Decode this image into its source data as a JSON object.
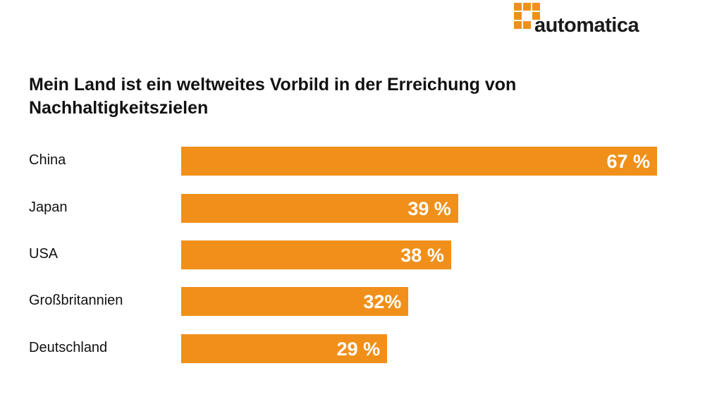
{
  "logo": {
    "text": "automatica",
    "color": "#f0901a"
  },
  "chart_data": {
    "type": "bar",
    "orientation": "horizontal",
    "title": "Mein Land ist ein weltweites Vorbild in der Erreichung von Nachhaltigkeitszielen",
    "categories": [
      "China",
      "Japan",
      "USA",
      "Großbritannien",
      "Deutschland"
    ],
    "values": [
      67,
      39,
      38,
      32,
      29
    ],
    "labels": [
      "67 %",
      "39 %",
      "38 %",
      "32%",
      "29 %"
    ],
    "unit": "%",
    "color": "#f0901a",
    "xlim": [
      0,
      67
    ],
    "grid": false
  }
}
